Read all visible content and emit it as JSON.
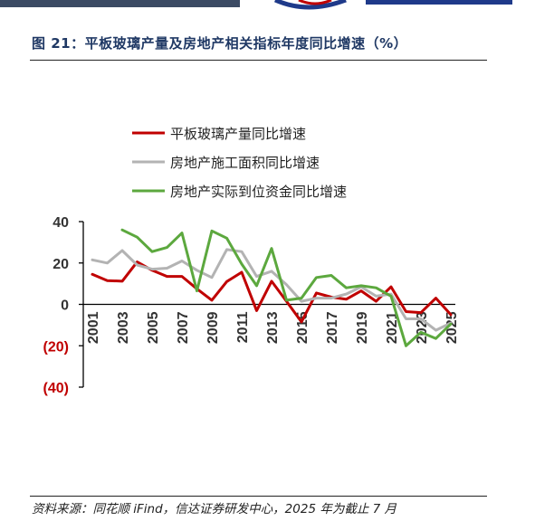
{
  "figure": {
    "title": "图 21：平板玻璃产量及房地产相关指标年度同比增速（%）",
    "source": "资料来源：同花顺 iFind，信达证券研发中心，2025 年为截止 7 月"
  },
  "colors": {
    "glass": "#c00000",
    "construction": "#b3b3b3",
    "investment": "#5ca83e",
    "axis": "#000000",
    "negative_tick": "#c00000",
    "title": "#1f3864"
  },
  "chart_data": {
    "type": "line",
    "title": "",
    "xlabel": "",
    "ylabel": "",
    "ylim": [
      -40,
      40
    ],
    "yticks": [
      40,
      20,
      0,
      -20,
      -40
    ],
    "ytick_labels": [
      "40",
      "20",
      "0",
      "(20)",
      "(40)"
    ],
    "x": [
      "2001",
      "2002",
      "2003",
      "2004",
      "2005",
      "2006",
      "2007",
      "2008",
      "2009",
      "2010",
      "2011",
      "2012",
      "2013",
      "2014",
      "2015",
      "2016",
      "2017",
      "2018",
      "2019",
      "2020",
      "2021",
      "2022",
      "2023",
      "2024",
      "2025"
    ],
    "xtick_labels": [
      "2001",
      "2003",
      "2005",
      "2007",
      "2009",
      "2011",
      "2013",
      "2015",
      "2017",
      "2019",
      "2021",
      "2023",
      "2025"
    ],
    "legend_position": "top",
    "grid": false,
    "series": [
      {
        "name": "平板玻璃产量同比增速",
        "color": "#c00000",
        "values": [
          14.5,
          11.5,
          11.2,
          20.5,
          16.5,
          13.5,
          13.5,
          7.5,
          2.0,
          11.0,
          15.5,
          -3.0,
          11.2,
          1.5,
          -8.5,
          5.5,
          3.5,
          2.5,
          6.5,
          1.5,
          8.5,
          -3.5,
          -4.0,
          3.0,
          -5.0
        ]
      },
      {
        "name": "房地产施工面积同比增速",
        "color": "#b3b3b3",
        "values": [
          21.5,
          20.0,
          26.0,
          19.0,
          17.0,
          17.5,
          21.0,
          16.5,
          13.0,
          26.5,
          25.5,
          13.5,
          16.0,
          9.5,
          1.5,
          3.0,
          3.0,
          5.0,
          8.5,
          4.0,
          5.0,
          -7.0,
          -7.0,
          -12.5,
          -9.0
        ]
      },
      {
        "name": "房地产实际到位资金同比增速",
        "color": "#5ca83e",
        "values": [
          null,
          null,
          36.0,
          32.5,
          25.5,
          27.5,
          34.5,
          6.5,
          35.5,
          32.0,
          19.5,
          9.0,
          27.0,
          2.0,
          3.0,
          13.0,
          14.0,
          8.0,
          9.0,
          8.0,
          4.0,
          -20.0,
          -13.5,
          -16.5,
          -9.5
        ]
      }
    ]
  }
}
